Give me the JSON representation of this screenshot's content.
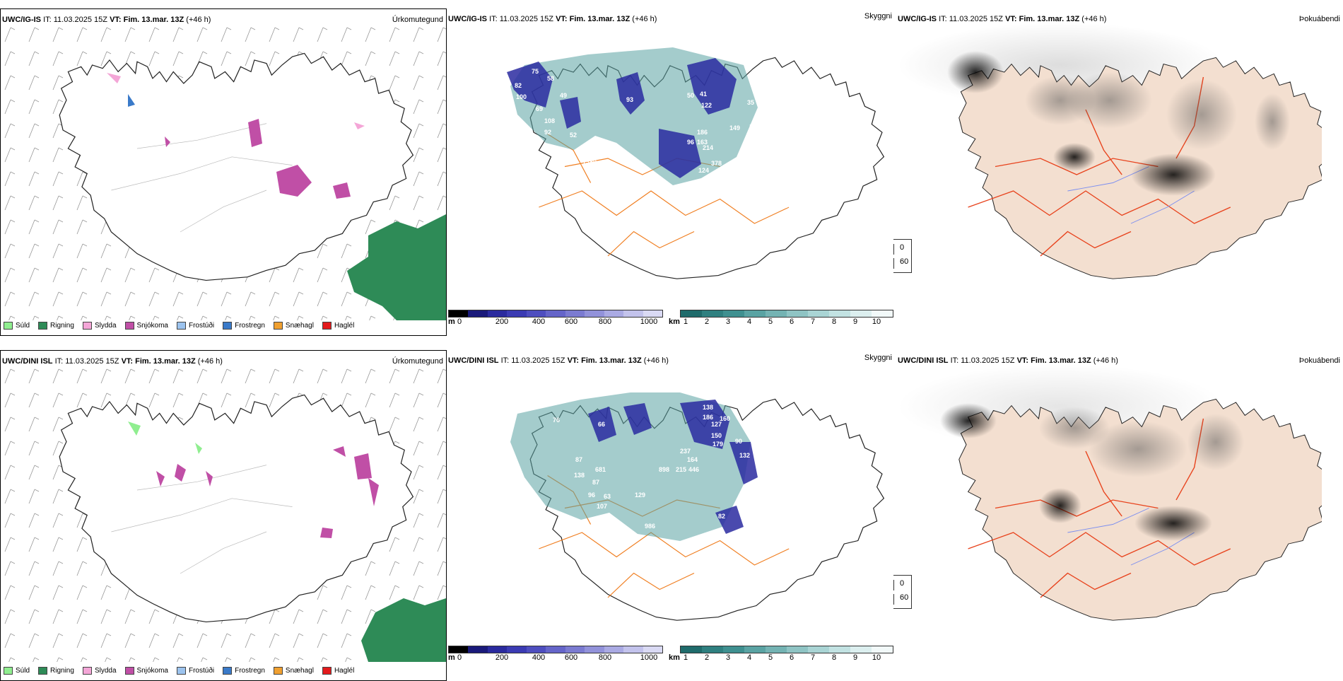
{
  "rows": [
    {
      "model": "UWC/IG-IS",
      "it_label": "IT:",
      "it_value": "11.03.2025 15Z",
      "vt_label": "VT:",
      "vt_value": "Fim. 13.mar. 13Z",
      "lead": "(+46 h)"
    },
    {
      "model": "UWC/DINI ISL",
      "it_label": "IT:",
      "it_value": "11.03.2025 15Z",
      "vt_label": "VT:",
      "vt_value": "Fim. 13.mar. 13Z",
      "lead": "(+46 h)"
    }
  ],
  "panel_titles": {
    "precip": "Úrkomutegund",
    "visibility": "Skyggni",
    "fog": "Þokuábendi"
  },
  "precip_legend": [
    {
      "label": "Súld",
      "color": "#90ee90"
    },
    {
      "label": "Rigning",
      "color": "#2e8b57"
    },
    {
      "label": "Slydda",
      "color": "#f4a6d7"
    },
    {
      "label": "Snjókoma",
      "color": "#c04fa6"
    },
    {
      "label": "Frostúði",
      "color": "#9cc3ee"
    },
    {
      "label": "Frostregn",
      "color": "#3a7ac9"
    },
    {
      "label": "Snæhagl",
      "color": "#f0a030"
    },
    {
      "label": "Haglél",
      "color": "#e31a1c"
    }
  ],
  "cbar_m": {
    "unit": "m",
    "ticks": [
      "0",
      "200",
      "400",
      "600",
      "800",
      "1000"
    ],
    "colors": [
      "#000000",
      "#1a1a7a",
      "#2a2a9e",
      "#3b3bb3",
      "#4e4ebf",
      "#6565c9",
      "#7b7bd1",
      "#9292da",
      "#aaaae3",
      "#c3c3ec",
      "#dadaf4"
    ]
  },
  "cbar_km": {
    "unit": "km",
    "ticks": [
      "1",
      "2",
      "3",
      "4",
      "5",
      "6",
      "7",
      "8",
      "9",
      "10"
    ],
    "colors": [
      "#1f6b6b",
      "#2f8080",
      "#3f9090",
      "#5aa3a3",
      "#74b3b3",
      "#8fc4c4",
      "#a9d4d4",
      "#c2e2e2",
      "#dcefef",
      "#f2f9f9"
    ]
  },
  "fog_legend": [
    {
      "label": "0",
      "color": "#000000"
    },
    {
      "label": "60",
      "color": "#ffffff"
    }
  ],
  "vis_values_top": [
    "75",
    "58",
    "82",
    "100",
    "49",
    "69",
    "108",
    "92",
    "93",
    "1380",
    "52",
    "96",
    "50",
    "41",
    "122",
    "35",
    "102",
    "61",
    "149",
    "186",
    "107",
    "219",
    "93",
    "163",
    "214",
    "23",
    "378",
    "124",
    "197",
    "89",
    "142",
    "35",
    "118",
    "112",
    "60",
    "93"
  ],
  "vis_values_bottom": [
    "76",
    "66",
    "87",
    "138",
    "681",
    "87",
    "96",
    "63",
    "107",
    "129",
    "898",
    "215",
    "237",
    "164",
    "446",
    "138",
    "186",
    "127",
    "160",
    "150",
    "179",
    "90",
    "132",
    "986",
    "82",
    "12"
  ],
  "colors": {
    "coast": "#222222",
    "road": "#f07f22",
    "fog_land": "#f3dfd0",
    "fog_road": "#e8431d",
    "fog_river": "#7b8ef0",
    "wind": "#8a8a8a",
    "rain": "#2e8b57",
    "snow": "#c04fa6",
    "vis_blue": "#2a2aa0",
    "vis_teal": "#5aa3a3"
  }
}
